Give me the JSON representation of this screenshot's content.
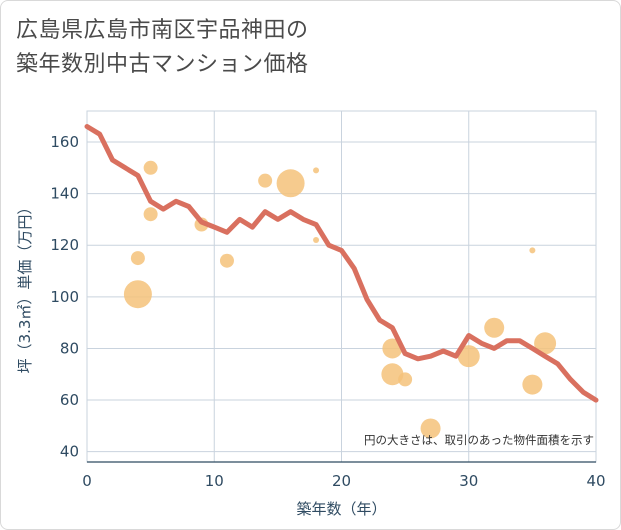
{
  "title_line1": "広島県広島市南区宇品神田の",
  "title_line2": "築年数別中古マンション価格",
  "colors": {
    "line": "#d9705f",
    "bubble": "#f5c27a",
    "grid": "#c9d3de",
    "axis_text": "#2f4b62"
  },
  "chart_data": {
    "type": "scatter",
    "title": "広島県広島市南区宇品神田の築年数別中古マンション価格",
    "xlabel": "築年数（年）",
    "ylabel": "坪（3.3㎡）単価（万円）",
    "xlim": [
      0,
      40
    ],
    "ylim": [
      36,
      172
    ],
    "xticks": [
      0,
      10,
      20,
      30,
      40
    ],
    "yticks": [
      40,
      60,
      80,
      100,
      120,
      140,
      160
    ],
    "grid": true,
    "annotation": "円の大きさは、取引のあった物件面積を示す",
    "series": [
      {
        "type": "line",
        "x": [
          0,
          1,
          2,
          3,
          4,
          5,
          6,
          7,
          8,
          9,
          10,
          11,
          12,
          13,
          14,
          15,
          16,
          17,
          18,
          19,
          20,
          21,
          22,
          23,
          24,
          25,
          26,
          27,
          28,
          29,
          30,
          31,
          32,
          33,
          34,
          35,
          36,
          37,
          38,
          39,
          40
        ],
        "values": [
          166,
          163,
          153,
          150,
          147,
          137,
          134,
          137,
          135,
          129,
          127,
          125,
          130,
          127,
          133,
          130,
          133,
          130,
          128,
          120,
          118,
          111,
          99,
          91,
          88,
          78,
          76,
          77,
          79,
          77,
          85,
          82,
          80,
          83,
          83,
          80,
          77,
          74,
          68,
          63,
          60
        ]
      },
      {
        "type": "bubble",
        "points": [
          {
            "x": 4,
            "y": 101,
            "size": 14
          },
          {
            "x": 4,
            "y": 115,
            "size": 7
          },
          {
            "x": 5,
            "y": 150,
            "size": 7
          },
          {
            "x": 5,
            "y": 132,
            "size": 7
          },
          {
            "x": 9,
            "y": 128,
            "size": 7
          },
          {
            "x": 11,
            "y": 114,
            "size": 7
          },
          {
            "x": 14,
            "y": 145,
            "size": 7
          },
          {
            "x": 16,
            "y": 144,
            "size": 14
          },
          {
            "x": 18,
            "y": 149,
            "size": 3
          },
          {
            "x": 18,
            "y": 122,
            "size": 3
          },
          {
            "x": 24,
            "y": 80,
            "size": 10
          },
          {
            "x": 24,
            "y": 70,
            "size": 11
          },
          {
            "x": 25,
            "y": 68,
            "size": 7
          },
          {
            "x": 27,
            "y": 49,
            "size": 10
          },
          {
            "x": 30,
            "y": 77,
            "size": 11
          },
          {
            "x": 32,
            "y": 88,
            "size": 10
          },
          {
            "x": 35,
            "y": 66,
            "size": 10
          },
          {
            "x": 35,
            "y": 118,
            "size": 3
          },
          {
            "x": 36,
            "y": 82,
            "size": 11
          }
        ]
      }
    ]
  }
}
